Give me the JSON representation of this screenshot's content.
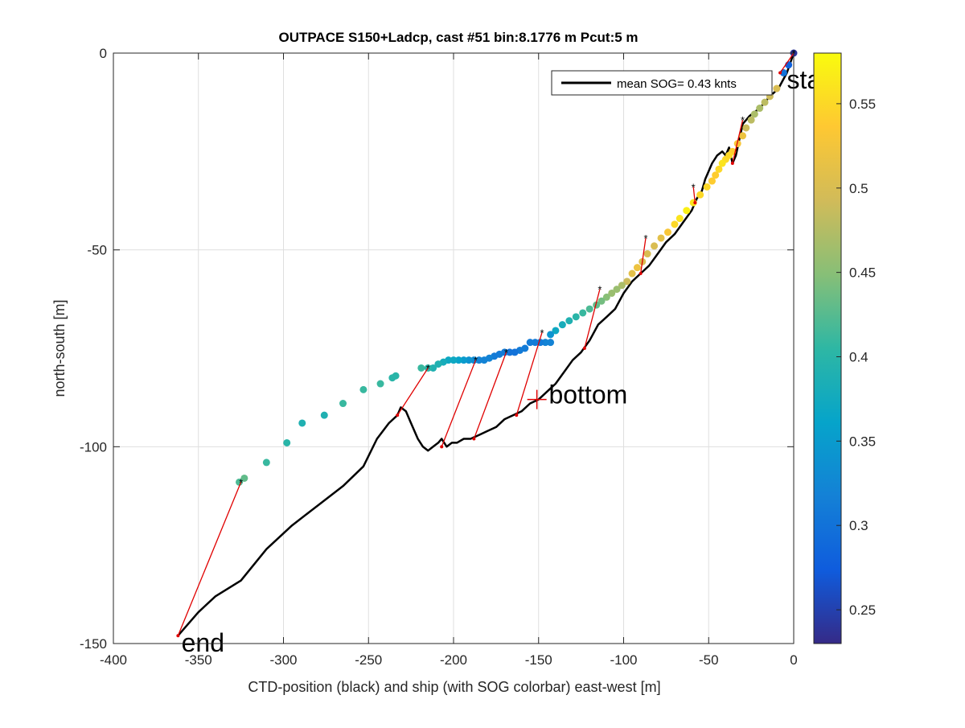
{
  "chart_data": {
    "type": "scatter",
    "title": "OUTPACE S150+Ladcp, cast #51 bin:8.1776 m  Pcut:5 m",
    "xlabel": "CTD-position (black) and ship (with SOG colorbar) east-west [m]",
    "ylabel": "north-south [m]",
    "xlim": [
      -400,
      0
    ],
    "ylim": [
      -150,
      0
    ],
    "xticks": [
      -400,
      -350,
      -300,
      -250,
      -200,
      -150,
      -100,
      -50,
      0
    ],
    "yticks": [
      -150,
      -100,
      -50,
      0
    ],
    "grid": true,
    "legend": {
      "position": "top-right",
      "entries": [
        "mean SOG=  0.43 knts"
      ]
    },
    "annotations": [
      {
        "text": "start",
        "x": -4,
        "y": -9
      },
      {
        "text": "bottom",
        "x": -144,
        "y": -89
      },
      {
        "text": "end",
        "x": -360,
        "y": -152
      }
    ],
    "bottom_marker": {
      "x": -151,
      "y": -88
    },
    "colorbar": {
      "min": 0.23,
      "max": 0.58,
      "ticks": [
        0.25,
        0.3,
        0.35,
        0.4,
        0.45,
        0.5,
        0.55
      ],
      "tick_labels": [
        "0.25",
        "0.3",
        "0.35",
        "0.4",
        "0.45",
        "0.5",
        "0.55"
      ],
      "colormap": [
        "#352a87",
        "#0f5cdd",
        "#1481d6",
        "#06a4ca",
        "#2eb7a4",
        "#87bf77",
        "#d1bb59",
        "#fec832",
        "#f9fb0e"
      ]
    },
    "ship_points": [
      [
        0,
        0,
        0.24
      ],
      [
        -3,
        -3,
        0.28
      ],
      [
        -6,
        -5,
        0.3
      ],
      [
        -10,
        -9,
        0.5
      ],
      [
        -14,
        -11,
        0.49
      ],
      [
        -17,
        -12.5,
        0.48
      ],
      [
        -20,
        -14,
        0.47
      ],
      [
        -23,
        -15.5,
        0.47
      ],
      [
        -25,
        -17,
        0.48
      ],
      [
        -28,
        -19,
        0.49
      ],
      [
        -30,
        -21,
        0.52
      ],
      [
        -33,
        -23,
        0.53
      ],
      [
        -36,
        -25,
        0.54
      ],
      [
        -38,
        -26,
        0.55
      ],
      [
        -40,
        -27,
        0.55
      ],
      [
        -42,
        -28,
        0.56
      ],
      [
        -44,
        -29.5,
        0.55
      ],
      [
        -46,
        -31,
        0.54
      ],
      [
        -48,
        -32.5,
        0.54
      ],
      [
        -51,
        -34,
        0.55
      ],
      [
        -55,
        -36,
        0.55
      ],
      [
        -59,
        -38,
        0.56
      ],
      [
        -63,
        -40,
        0.57
      ],
      [
        -67,
        -42,
        0.56
      ],
      [
        -70,
        -43.5,
        0.55
      ],
      [
        -74,
        -45.5,
        0.53
      ],
      [
        -78,
        -47,
        0.51
      ],
      [
        -82,
        -49,
        0.5
      ],
      [
        -86,
        -51,
        0.5
      ],
      [
        -89,
        -53,
        0.5
      ],
      [
        -92,
        -54.5,
        0.52
      ],
      [
        -95,
        -56,
        0.51
      ],
      [
        -98,
        -58,
        0.49
      ],
      [
        -101,
        -59,
        0.47
      ],
      [
        -104,
        -60,
        0.46
      ],
      [
        -107,
        -61,
        0.46
      ],
      [
        -110,
        -62,
        0.45
      ],
      [
        -113,
        -63,
        0.44
      ],
      [
        -116,
        -64,
        0.43
      ],
      [
        -120,
        -65,
        0.42
      ],
      [
        -124,
        -66,
        0.41
      ],
      [
        -128,
        -67,
        0.4
      ],
      [
        -132,
        -68,
        0.39
      ],
      [
        -136,
        -69,
        0.38
      ],
      [
        -140,
        -70.5,
        0.37
      ],
      [
        -143,
        -71.5,
        0.34
      ],
      [
        -143,
        -73.5,
        0.32
      ],
      [
        -146,
        -73.5,
        0.32
      ],
      [
        -149,
        -73.5,
        0.31
      ],
      [
        -152,
        -73.5,
        0.31
      ],
      [
        -155,
        -73.5,
        0.31
      ],
      [
        -158,
        -75,
        0.31
      ],
      [
        -161,
        -75.5,
        0.31
      ],
      [
        -164,
        -76,
        0.3
      ],
      [
        -167,
        -76,
        0.3
      ],
      [
        -170,
        -76,
        0.31
      ],
      [
        -173,
        -76.5,
        0.31
      ],
      [
        -176,
        -77,
        0.31
      ],
      [
        -179,
        -77.5,
        0.32
      ],
      [
        -182,
        -78,
        0.32
      ],
      [
        -185,
        -78,
        0.32
      ],
      [
        -188,
        -78,
        0.33
      ],
      [
        -191,
        -78,
        0.34
      ],
      [
        -194,
        -78,
        0.35
      ],
      [
        -197,
        -78,
        0.36
      ],
      [
        -200,
        -78,
        0.37
      ],
      [
        -203,
        -78,
        0.37
      ],
      [
        -206,
        -78.5,
        0.38
      ],
      [
        -209,
        -79,
        0.39
      ],
      [
        -212,
        -80,
        0.39
      ],
      [
        -215,
        -80,
        0.4
      ],
      [
        -219,
        -80,
        0.41
      ],
      [
        -234,
        -82,
        0.4
      ],
      [
        -236,
        -82.5,
        0.4
      ],
      [
        -243,
        -84,
        0.41
      ],
      [
        -253,
        -85.5,
        0.41
      ],
      [
        -265,
        -89,
        0.41
      ],
      [
        -276,
        -92,
        0.39
      ],
      [
        -289,
        -94,
        0.39
      ],
      [
        -298,
        -99,
        0.4
      ],
      [
        -310,
        -104,
        0.41
      ],
      [
        -323,
        -108,
        0.43
      ],
      [
        -326,
        -109,
        0.42
      ]
    ],
    "ctd_track": [
      [
        0,
        0
      ],
      [
        -4,
        -5
      ],
      [
        -9,
        -9
      ],
      [
        -14,
        -11
      ],
      [
        -20,
        -14
      ],
      [
        -26,
        -16
      ],
      [
        -30,
        -18
      ],
      [
        -32,
        -22
      ],
      [
        -34,
        -26
      ],
      [
        -36,
        -28
      ],
      [
        -38,
        -24
      ],
      [
        -40,
        -26
      ],
      [
        -42,
        -25
      ],
      [
        -45,
        -26
      ],
      [
        -48,
        -28
      ],
      [
        -50,
        -30
      ],
      [
        -52,
        -32
      ],
      [
        -54,
        -35
      ],
      [
        -57,
        -37
      ],
      [
        -60,
        -40
      ],
      [
        -65,
        -43
      ],
      [
        -70,
        -46
      ],
      [
        -75,
        -48
      ],
      [
        -80,
        -51
      ],
      [
        -85,
        -54
      ],
      [
        -90,
        -56
      ],
      [
        -95,
        -58
      ],
      [
        -100,
        -61
      ],
      [
        -105,
        -65
      ],
      [
        -110,
        -67
      ],
      [
        -115,
        -69
      ],
      [
        -120,
        -73
      ],
      [
        -125,
        -76
      ],
      [
        -130,
        -78
      ],
      [
        -135,
        -81
      ],
      [
        -140,
        -84
      ],
      [
        -145,
        -86
      ],
      [
        -150,
        -88
      ],
      [
        -155,
        -89
      ],
      [
        -160,
        -91
      ],
      [
        -165,
        -92
      ],
      [
        -170,
        -93
      ],
      [
        -175,
        -95
      ],
      [
        -180,
        -96
      ],
      [
        -185,
        -97
      ],
      [
        -190,
        -98
      ],
      [
        -194,
        -98
      ],
      [
        -198,
        -99
      ],
      [
        -201,
        -99
      ],
      [
        -204,
        -100
      ],
      [
        -207,
        -98
      ],
      [
        -209,
        -99
      ],
      [
        -212,
        -100
      ],
      [
        -215,
        -101
      ],
      [
        -218,
        -100
      ],
      [
        -221,
        -98
      ],
      [
        -225,
        -94
      ],
      [
        -228,
        -91
      ],
      [
        -231,
        -90
      ],
      [
        -233,
        -92
      ],
      [
        -238,
        -94
      ],
      [
        -245,
        -98
      ],
      [
        -253,
        -105
      ],
      [
        -265,
        -110
      ],
      [
        -280,
        -115
      ],
      [
        -295,
        -120
      ],
      [
        -310,
        -126
      ],
      [
        -325,
        -134
      ],
      [
        -340,
        -138
      ],
      [
        -350,
        -142
      ],
      [
        -360,
        -147
      ],
      [
        -362,
        -148
      ]
    ],
    "connections": [
      {
        "ship": [
          0,
          0
        ],
        "ctd": [
          -8,
          -5
        ]
      },
      {
        "ship": [
          -30,
          -17
        ],
        "ctd": [
          -36,
          -28
        ]
      },
      {
        "ship": [
          -59,
          -34
        ],
        "ctd": [
          -58,
          -38
        ]
      },
      {
        "ship": [
          -87,
          -47
        ],
        "ctd": [
          -90,
          -56
        ]
      },
      {
        "ship": [
          -114,
          -60
        ],
        "ctd": [
          -123,
          -75
        ]
      },
      {
        "ship": [
          -148,
          -71
        ],
        "ctd": [
          -163,
          -92
        ]
      },
      {
        "ship": [
          -169,
          -76
        ],
        "ctd": [
          -188,
          -98
        ]
      },
      {
        "ship": [
          -187,
          -78
        ],
        "ctd": [
          -207,
          -100
        ]
      },
      {
        "ship": [
          -215,
          -80
        ],
        "ctd": [
          -233,
          -92
        ]
      },
      {
        "ship": [
          -325,
          -109
        ],
        "ctd": [
          -362,
          -148
        ]
      }
    ]
  }
}
